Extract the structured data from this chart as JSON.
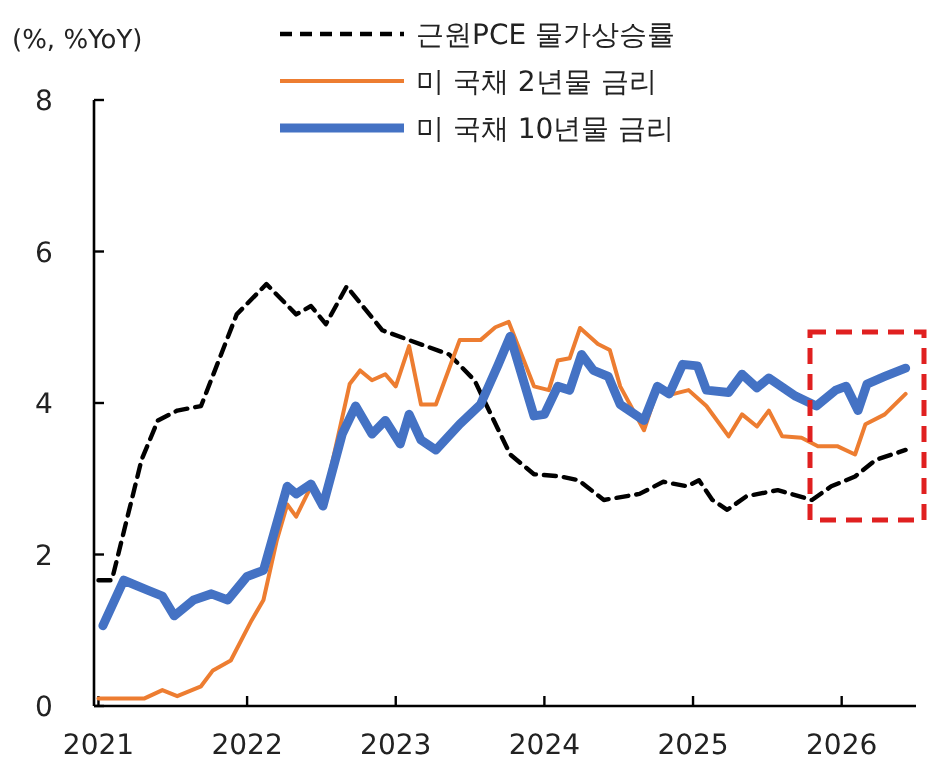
{
  "chart_data": {
    "type": "line",
    "ylabel": "(%, %YoY)",
    "xlim": [
      2020.97,
      2026.5
    ],
    "ylim": [
      0,
      8
    ],
    "xticks": [
      2021,
      2022,
      2023,
      2024,
      2025,
      2026
    ],
    "yticks": [
      0,
      2,
      4,
      6,
      8
    ],
    "legend": "top",
    "series": [
      {
        "name": "근원PCE 물가상승률",
        "color": "#000000",
        "line_style": "dashed",
        "x": [
          2021.0,
          2021.09,
          2021.29,
          2021.4,
          2021.53,
          2021.69,
          2021.93,
          2022.13,
          2022.33,
          2022.43,
          2022.53,
          2022.67,
          2022.91,
          2023.09,
          2023.36,
          2023.53,
          2023.77,
          2023.93,
          2024.11,
          2024.23,
          2024.4,
          2024.64,
          2024.8,
          2024.96,
          2025.04,
          2025.13,
          2025.23,
          2025.36,
          2025.57,
          2025.8,
          2025.93,
          2026.09,
          2026.23,
          2026.43
        ],
        "values": [
          1.66,
          1.66,
          3.25,
          3.77,
          3.9,
          3.96,
          5.17,
          5.57,
          5.17,
          5.28,
          5.04,
          5.54,
          4.96,
          4.83,
          4.64,
          4.3,
          3.32,
          3.06,
          3.03,
          2.98,
          2.72,
          2.8,
          2.96,
          2.9,
          2.98,
          2.72,
          2.59,
          2.77,
          2.85,
          2.72,
          2.9,
          3.03,
          3.25,
          3.38
        ]
      },
      {
        "name": "미 국채 2년물 금리",
        "color": "#ed7d31",
        "x": [
          2021.0,
          2021.31,
          2021.43,
          2021.53,
          2021.69,
          2021.77,
          2021.89,
          2022.03,
          2022.11,
          2022.2,
          2022.27,
          2022.33,
          2022.43,
          2022.51,
          2022.69,
          2022.76,
          2022.84,
          2022.93,
          2023.0,
          2023.09,
          2023.17,
          2023.27,
          2023.43,
          2023.57,
          2023.67,
          2023.76,
          2023.93,
          2024.03,
          2024.09,
          2024.17,
          2024.24,
          2024.36,
          2024.44,
          2024.51,
          2024.67,
          2024.76,
          2024.87,
          2024.97,
          2025.09,
          2025.24,
          2025.33,
          2025.43,
          2025.51,
          2025.6,
          2025.73,
          2025.84,
          2025.97,
          2026.09,
          2026.16,
          2026.29,
          2026.43
        ],
        "values": [
          0.1,
          0.1,
          0.21,
          0.13,
          0.26,
          0.47,
          0.6,
          1.13,
          1.4,
          2.19,
          2.66,
          2.5,
          2.9,
          2.66,
          4.25,
          4.43,
          4.3,
          4.38,
          4.22,
          4.75,
          3.98,
          3.98,
          4.83,
          4.83,
          5.0,
          5.07,
          4.22,
          4.17,
          4.56,
          4.59,
          4.99,
          4.78,
          4.7,
          4.22,
          3.64,
          4.17,
          4.12,
          4.17,
          3.96,
          3.56,
          3.85,
          3.69,
          3.9,
          3.56,
          3.54,
          3.43,
          3.43,
          3.32,
          3.72,
          3.85,
          4.12
        ]
      },
      {
        "name": "미 국채 10년물 금리",
        "color": "#4472c4",
        "x": [
          2021.03,
          2021.17,
          2021.33,
          2021.43,
          2021.51,
          2021.64,
          2021.76,
          2021.87,
          2022.0,
          2022.11,
          2022.27,
          2022.33,
          2022.43,
          2022.51,
          2022.64,
          2022.73,
          2022.84,
          2022.93,
          2023.03,
          2023.09,
          2023.17,
          2023.27,
          2023.43,
          2023.57,
          2023.69,
          2023.77,
          2023.93,
          2024.0,
          2024.09,
          2024.17,
          2024.25,
          2024.33,
          2024.43,
          2024.51,
          2024.67,
          2024.76,
          2024.84,
          2024.93,
          2025.03,
          2025.09,
          2025.24,
          2025.33,
          2025.43,
          2025.51,
          2025.69,
          2025.83,
          2025.96,
          2026.03,
          2026.11,
          2026.17,
          2026.29,
          2026.43
        ],
        "values": [
          1.06,
          1.66,
          1.53,
          1.45,
          1.19,
          1.4,
          1.48,
          1.4,
          1.71,
          1.79,
          2.9,
          2.8,
          2.93,
          2.64,
          3.59,
          3.96,
          3.59,
          3.77,
          3.46,
          3.85,
          3.51,
          3.38,
          3.72,
          3.98,
          4.51,
          4.88,
          3.83,
          3.85,
          4.22,
          4.17,
          4.64,
          4.43,
          4.35,
          3.98,
          3.77,
          4.22,
          4.12,
          4.51,
          4.49,
          4.17,
          4.14,
          4.38,
          4.2,
          4.33,
          4.09,
          3.96,
          4.17,
          4.22,
          3.9,
          4.25,
          4.35,
          4.46
        ]
      }
    ]
  }
}
